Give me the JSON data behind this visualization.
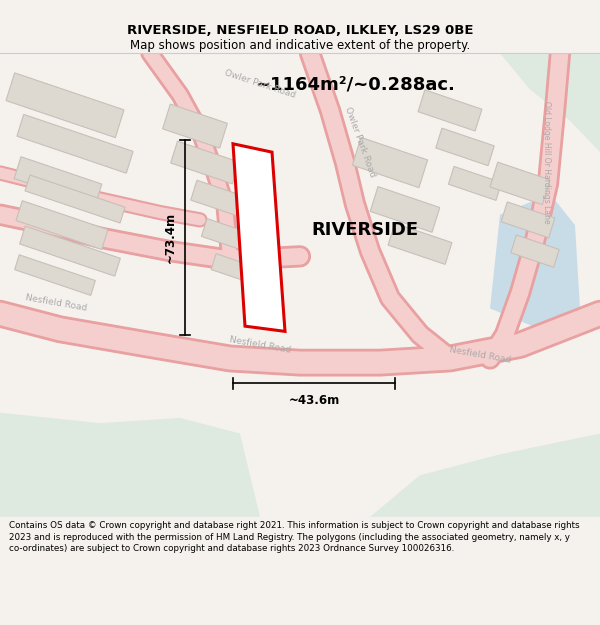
{
  "title_line1": "RIVERSIDE, NESFIELD ROAD, ILKLEY, LS29 0BE",
  "title_line2": "Map shows position and indicative extent of the property.",
  "property_label": "RIVERSIDE",
  "area_text": "~1164m²/~0.288ac.",
  "dim_vertical": "~73.4m",
  "dim_horizontal": "~43.6m",
  "footer_text": "Contains OS data © Crown copyright and database right 2021. This information is subject to Crown copyright and database rights 2023 and is reproduced with the permission of HM Land Registry. The polygons (including the associated geometry, namely x, y co-ordinates) are subject to Crown copyright and database rights 2023 Ordnance Survey 100026316.",
  "bg_color": "#f5f2ee",
  "map_bg": "#f5f2ee",
  "road_fill": "#f5cece",
  "road_edge": "#e8a0a0",
  "building_fill": "#ddd8d0",
  "building_edge": "#c8c0b8",
  "green_fill": "#deeae0",
  "blue_fill": "#c8dce8",
  "property_color": "#dd0000",
  "property_fill": "#ffffff",
  "dim_color": "#000000",
  "label_color": "#aaaaaa",
  "text_color": "#000000"
}
